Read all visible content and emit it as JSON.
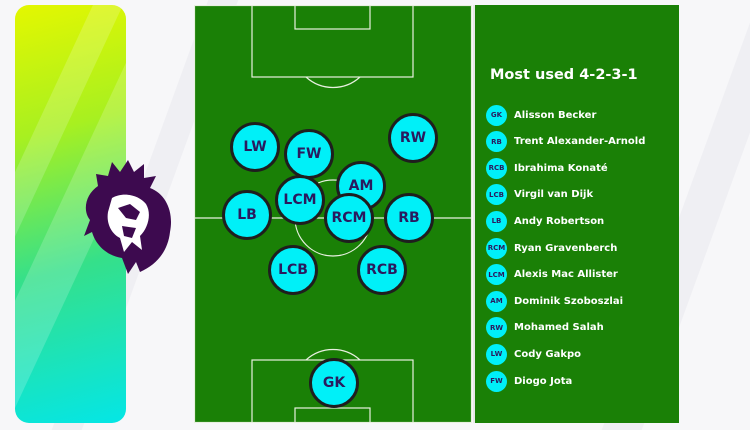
{
  "title": "Most used 4-2-3-1",
  "colors": {
    "pitch": "#1a8006",
    "player_fill": "#00f0f8",
    "player_text": "#2a1a5e",
    "logo": "#3d0a4f"
  },
  "logo": {
    "icon": "premier-league-lion-logo"
  },
  "pitch_players": [
    {
      "pos": "LW"
    },
    {
      "pos": "FW"
    },
    {
      "pos": "RW"
    },
    {
      "pos": "AM"
    },
    {
      "pos": "LCM"
    },
    {
      "pos": "RCM"
    },
    {
      "pos": "LB"
    },
    {
      "pos": "RB"
    },
    {
      "pos": "LCB"
    },
    {
      "pos": "RCB"
    },
    {
      "pos": "GK"
    }
  ],
  "lineup": [
    {
      "pos": "GK",
      "name": "Alisson Becker"
    },
    {
      "pos": "RB",
      "name": "Trent Alexander-Arnold"
    },
    {
      "pos": "RCB",
      "name": "Ibrahima Konaté"
    },
    {
      "pos": "LCB",
      "name": "Virgil van Dijk"
    },
    {
      "pos": "LB",
      "name": "Andy Robertson"
    },
    {
      "pos": "RCM",
      "name": "Ryan Gravenberch"
    },
    {
      "pos": "LCM",
      "name": "Alexis Mac Allister"
    },
    {
      "pos": "AM",
      "name": "Dominik Szoboszlai"
    },
    {
      "pos": "RW",
      "name": "Mohamed Salah"
    },
    {
      "pos": "LW",
      "name": "Cody Gakpo"
    },
    {
      "pos": "FW",
      "name": "Diogo Jota"
    }
  ]
}
